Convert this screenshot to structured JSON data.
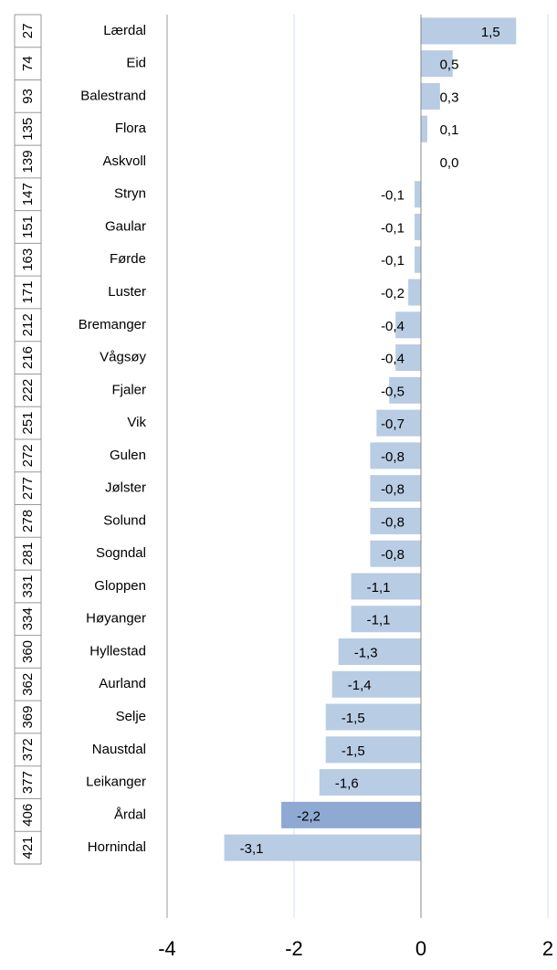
{
  "chart_data": {
    "type": "bar",
    "ranks": [
      27,
      74,
      93,
      135,
      139,
      147,
      151,
      163,
      171,
      212,
      216,
      222,
      251,
      272,
      277,
      278,
      281,
      331,
      334,
      360,
      362,
      369,
      372,
      377,
      406,
      421
    ],
    "categories": [
      "Lærdal",
      "Eid",
      "Balestrand",
      "Flora",
      "Askvoll",
      "Stryn",
      "Gaular",
      "Førde",
      "Luster",
      "Bremanger",
      "Vågsøy",
      "Fjaler",
      "Vik",
      "Gulen",
      "Jølster",
      "Solund",
      "Sogndal",
      "Gloppen",
      "Høyanger",
      "Hyllestad",
      "Aurland",
      "Selje",
      "Naustdal",
      "Leikanger",
      "Årdal",
      "Hornindal"
    ],
    "values": [
      1.5,
      0.5,
      0.3,
      0.1,
      0.0,
      -0.1,
      -0.1,
      -0.1,
      -0.2,
      -0.4,
      -0.4,
      -0.5,
      -0.7,
      -0.8,
      -0.8,
      -0.8,
      -0.8,
      -1.1,
      -1.1,
      -1.3,
      -1.4,
      -1.5,
      -1.5,
      -1.6,
      -2.2,
      -3.1
    ],
    "value_labels": [
      "1,5",
      "0,5",
      "0,3",
      "0,1",
      "0,0",
      "-0,1",
      "-0,1",
      "-0,1",
      "-0,2",
      "-0,4",
      "-0,4",
      "-0,5",
      "-0,7",
      "-0,8",
      "-0,8",
      "-0,8",
      "-0,8",
      "-1,1",
      "-1,1",
      "-1,3",
      "-1,4",
      "-1,5",
      "-1,5",
      "-1,6",
      "-2,2",
      "-3,1"
    ],
    "colors": [
      "#b8cce4",
      "#b8cce4",
      "#b8cce4",
      "#b8cce4",
      "#b8cce4",
      "#b8cce4",
      "#b8cce4",
      "#b8cce4",
      "#b8cce4",
      "#b8cce4",
      "#b8cce4",
      "#b8cce4",
      "#b8cce4",
      "#b8cce4",
      "#b8cce4",
      "#b8cce4",
      "#b8cce4",
      "#b8cce4",
      "#b8cce4",
      "#b8cce4",
      "#b8cce4",
      "#b8cce4",
      "#b8cce4",
      "#b8cce4",
      "#8eaad3",
      "#b8cce4"
    ],
    "xlim": [
      -4,
      2
    ],
    "xticks": [
      -4,
      -2,
      0,
      2
    ],
    "grid": true
  }
}
